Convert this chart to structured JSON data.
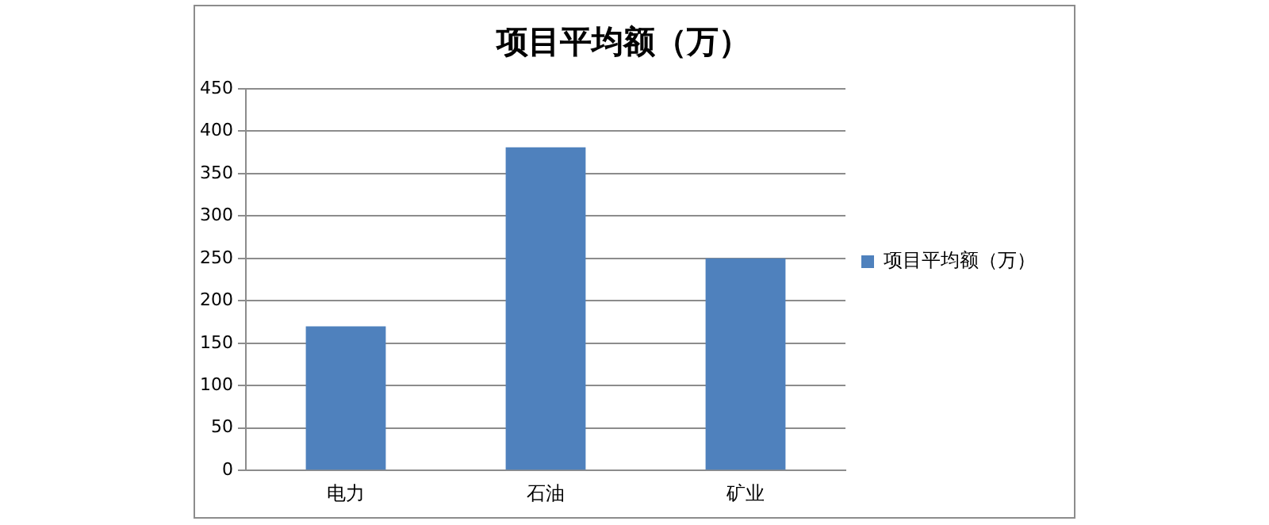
{
  "chart_data": {
    "type": "bar",
    "title": "项目平均额（万）",
    "categories": [
      "电力",
      "石油",
      "矿业"
    ],
    "series": [
      {
        "name": "项目平均额（万）",
        "color": "#4f81bd",
        "values": [
          170,
          381,
          250
        ]
      }
    ],
    "ylim": [
      0,
      450
    ],
    "yticks": [
      0,
      50,
      100,
      150,
      200,
      250,
      300,
      350,
      400,
      450
    ],
    "grid": "y",
    "legend": "right"
  }
}
